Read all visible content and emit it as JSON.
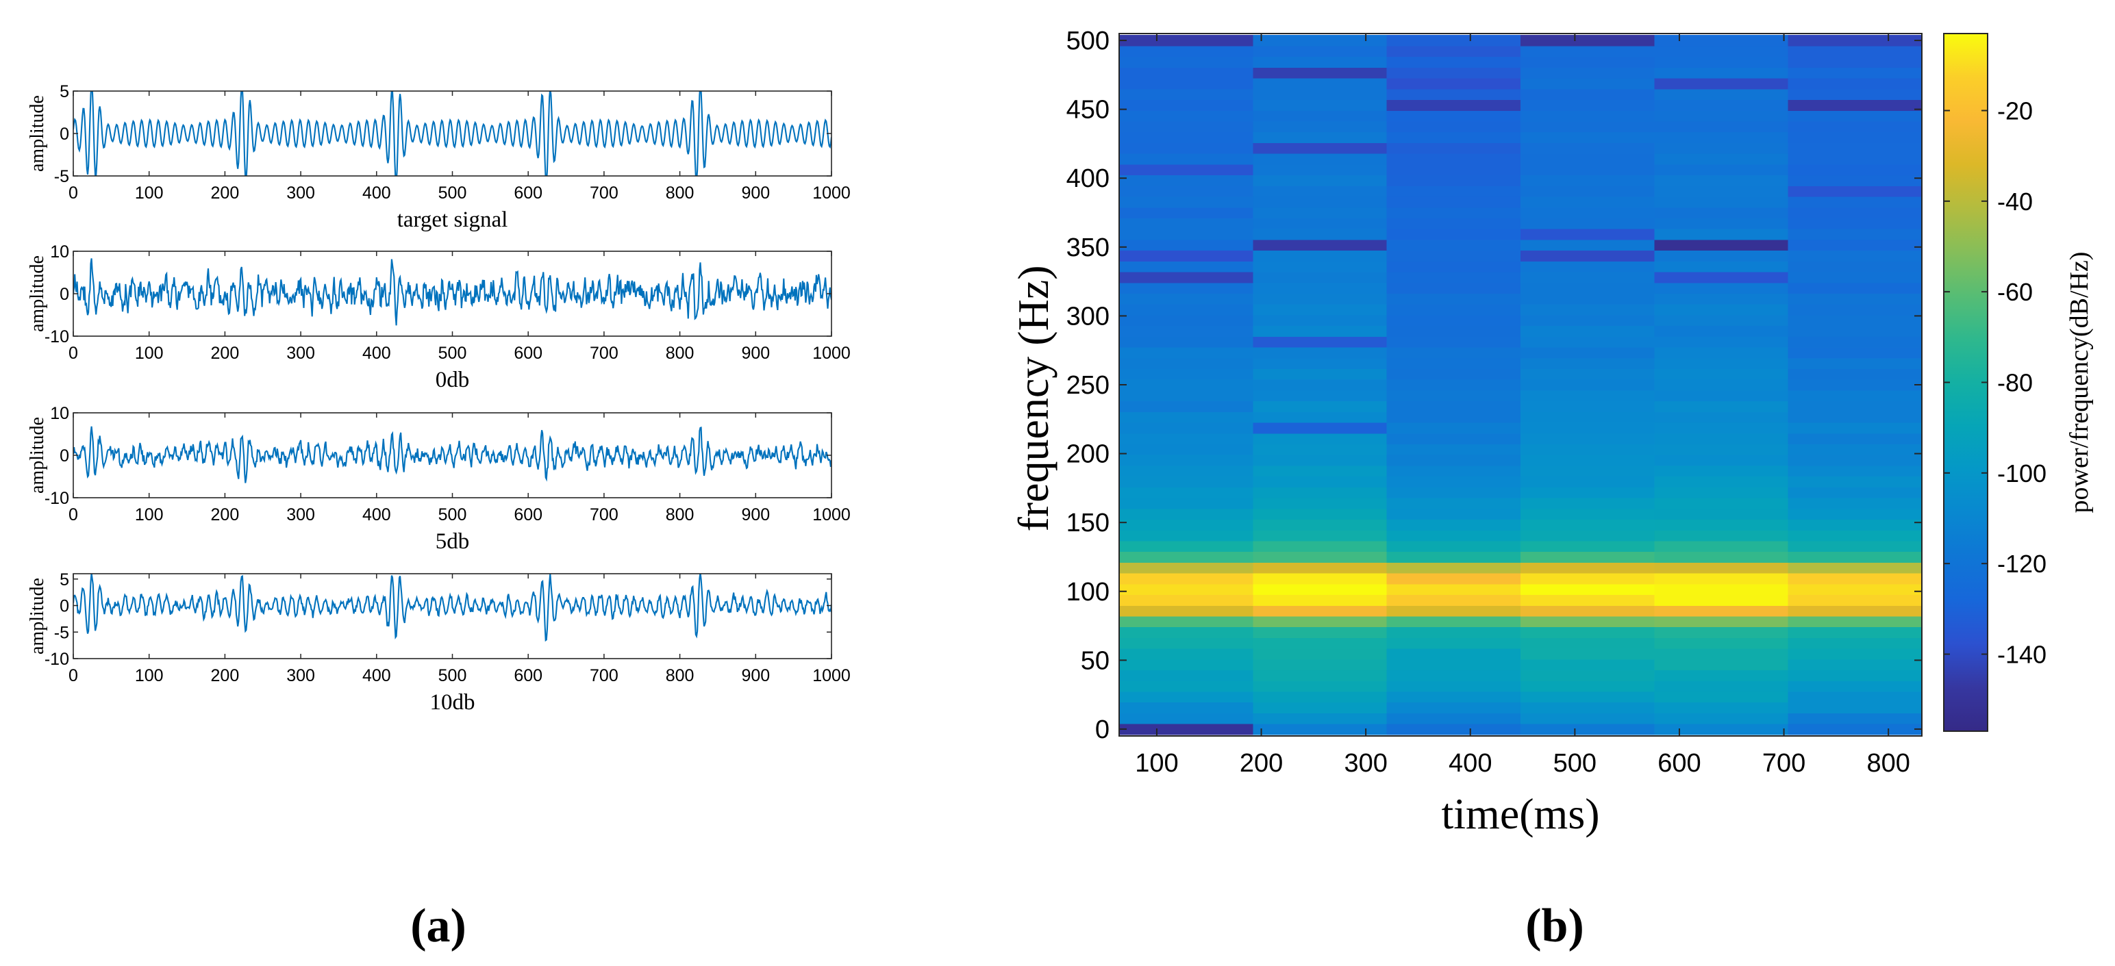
{
  "panel_labels": {
    "a": "(a)",
    "b": "(b)"
  },
  "chart_data": [
    {
      "type": "line",
      "panel": "a",
      "title": "",
      "xlabel": "target signal",
      "ylabel": "amplitude",
      "xlim": [
        0,
        1000
      ],
      "ylim": [
        -5,
        5
      ],
      "xticks": [
        0,
        100,
        200,
        300,
        400,
        500,
        600,
        700,
        800,
        900,
        1000
      ],
      "yticks": [
        -5,
        0,
        5
      ],
      "series": [
        {
          "name": "target signal",
          "color": "#0072BD",
          "signal": {
            "carrier_period": 11,
            "burst_centers": [
              25,
              225,
              425,
              625,
              825
            ],
            "burst_width": 22,
            "burst_amplitude": 5.4,
            "baseline_amplitude": 1.6,
            "baseline_modulation_period": 100,
            "noise_amplitude": 0
          }
        }
      ]
    },
    {
      "type": "line",
      "panel": "a",
      "title": "",
      "xlabel": "0db",
      "ylabel": "amplitude",
      "xlim": [
        0,
        1000
      ],
      "ylim": [
        -10,
        10
      ],
      "xticks": [
        0,
        100,
        200,
        300,
        400,
        500,
        600,
        700,
        800,
        900,
        1000
      ],
      "yticks": [
        -10,
        0,
        10
      ],
      "series": [
        {
          "name": "0db",
          "color": "#0072BD",
          "signal": {
            "carrier_period": 11,
            "burst_centers": [
              25,
              225,
              425,
              625,
              825
            ],
            "burst_width": 22,
            "burst_amplitude": 5.4,
            "baseline_amplitude": 1.6,
            "baseline_modulation_period": 100,
            "noise_amplitude": 3.4
          }
        }
      ]
    },
    {
      "type": "line",
      "panel": "a",
      "title": "",
      "xlabel": "5db",
      "ylabel": "amplitude",
      "xlim": [
        0,
        1000
      ],
      "ylim": [
        -10,
        10
      ],
      "xticks": [
        0,
        100,
        200,
        300,
        400,
        500,
        600,
        700,
        800,
        900,
        1000
      ],
      "yticks": [
        -10,
        0,
        10
      ],
      "series": [
        {
          "name": "5db",
          "color": "#0072BD",
          "signal": {
            "carrier_period": 11,
            "burst_centers": [
              25,
              225,
              425,
              625,
              825
            ],
            "burst_width": 22,
            "burst_amplitude": 5.4,
            "baseline_amplitude": 1.6,
            "baseline_modulation_period": 100,
            "noise_amplitude": 1.9
          }
        }
      ]
    },
    {
      "type": "line",
      "panel": "a",
      "title": "",
      "xlabel": "10db",
      "ylabel": "amplitude",
      "xlim": [
        0,
        1000
      ],
      "ylim": [
        -10,
        6
      ],
      "xticks": [
        0,
        100,
        200,
        300,
        400,
        500,
        600,
        700,
        800,
        900,
        1000
      ],
      "yticks": [
        -10,
        -5,
        0,
        5
      ],
      "series": [
        {
          "name": "10db",
          "color": "#0072BD",
          "signal": {
            "carrier_period": 11,
            "burst_centers": [
              25,
              225,
              425,
              625,
              825
            ],
            "burst_width": 22,
            "burst_amplitude": 5.4,
            "baseline_amplitude": 1.6,
            "baseline_modulation_period": 100,
            "noise_amplitude": 1.0
          }
        }
      ]
    },
    {
      "type": "heatmap",
      "panel": "b",
      "title": "",
      "xlabel": "time(ms)",
      "ylabel": "frequency (Hz)",
      "xlim": [
        64,
        832
      ],
      "ylim": [
        -5,
        505
      ],
      "xticks": [
        100,
        200,
        300,
        400,
        500,
        600,
        700,
        800
      ],
      "yticks": [
        0,
        50,
        100,
        150,
        200,
        250,
        300,
        350,
        400,
        450,
        500
      ],
      "time_bins": [
        {
          "start": 64,
          "end": 192
        },
        {
          "start": 192,
          "end": 320
        },
        {
          "start": 320,
          "end": 448
        },
        {
          "start": 448,
          "end": 576
        },
        {
          "start": 576,
          "end": 704
        },
        {
          "start": 704,
          "end": 832
        }
      ],
      "freq_bin_width": 7.8125,
      "colormap": "parula",
      "colorbar": {
        "label": "power/frequency(dB/Hz)",
        "range": [
          -157,
          -3
        ],
        "ticks": [
          -20,
          -40,
          -60,
          -80,
          -100,
          -120,
          -140
        ]
      },
      "profile": {
        "frequencies": [
          0,
          10,
          30,
          50,
          70,
          80,
          90,
          100,
          110,
          120,
          125,
          135,
          150,
          175,
          200,
          230,
          260,
          300,
          350,
          400,
          450,
          500
        ],
        "power_dB": [
          -118,
          -108,
          -96,
          -90,
          -82,
          -56,
          -14,
          -6,
          -14,
          -48,
          -72,
          -84,
          -94,
          -104,
          -109,
          -113,
          -116,
          -119,
          -122,
          -124,
          -126,
          -128
        ]
      },
      "time_offsets_dB": [
        0,
        6,
        -4,
        3,
        5,
        -2
      ],
      "notches": [
        {
          "time_bin": 0,
          "freq": 0,
          "dB": -150
        },
        {
          "time_bin": 0,
          "freq": 344,
          "dB": -138
        },
        {
          "time_bin": 0,
          "freq": 328,
          "dB": -142
        },
        {
          "time_bin": 0,
          "freq": 406,
          "dB": -136
        },
        {
          "time_bin": 0,
          "freq": 500,
          "dB": -146
        },
        {
          "time_bin": 1,
          "freq": 352,
          "dB": -146
        },
        {
          "time_bin": 1,
          "freq": 477,
          "dB": -144
        },
        {
          "time_bin": 1,
          "freq": 422,
          "dB": -140
        },
        {
          "time_bin": 1,
          "freq": 281,
          "dB": -134
        },
        {
          "time_bin": 1,
          "freq": 219,
          "dB": -130
        },
        {
          "time_bin": 2,
          "freq": 453,
          "dB": -144
        },
        {
          "time_bin": 2,
          "freq": 469,
          "dB": -138
        },
        {
          "time_bin": 3,
          "freq": 500,
          "dB": -148
        },
        {
          "time_bin": 3,
          "freq": 344,
          "dB": -140
        },
        {
          "time_bin": 3,
          "freq": 359,
          "dB": -136
        },
        {
          "time_bin": 4,
          "freq": 352,
          "dB": -152
        },
        {
          "time_bin": 4,
          "freq": 469,
          "dB": -140
        },
        {
          "time_bin": 4,
          "freq": 328,
          "dB": -136
        },
        {
          "time_bin": 5,
          "freq": 453,
          "dB": -146
        },
        {
          "time_bin": 5,
          "freq": 500,
          "dB": -142
        },
        {
          "time_bin": 5,
          "freq": 391,
          "dB": -136
        }
      ]
    }
  ]
}
